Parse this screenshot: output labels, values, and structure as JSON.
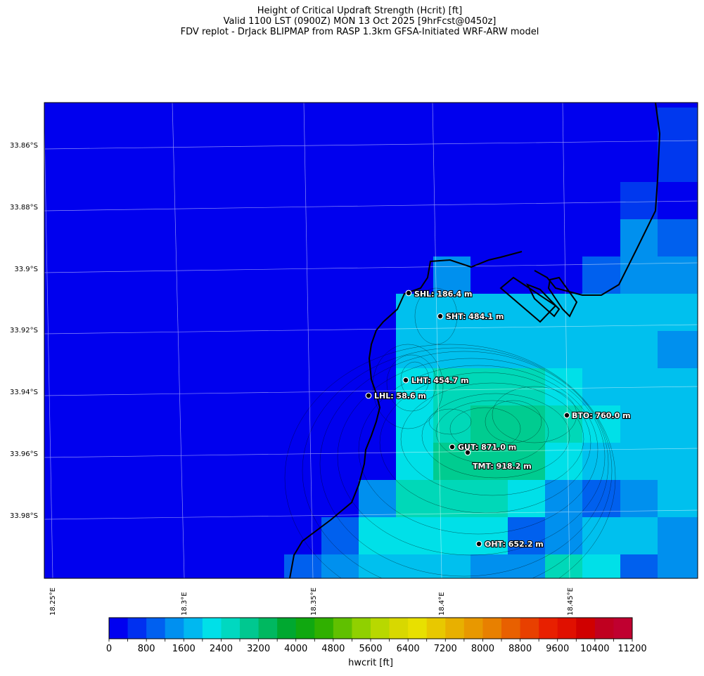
{
  "title": {
    "line1": "Height of Critical Updraft Strength (Hcrit) [ft]",
    "line2": "Valid 1100 LST (0900Z) MON 13 Oct 2025 [9hrFcst@0450z]",
    "line3": "FDV replot - DrJack BLIPMAP from RASP 1.3km GFSA-Initiated WRF-ARW model"
  },
  "lat_labels": [
    "33.86°S",
    "33.88°S",
    "33.9°S",
    "33.92°S",
    "33.94°S",
    "33.96°S",
    "33.98°S"
  ],
  "lon_labels": [
    "18.25°E",
    "18.3°E",
    "18.35°E",
    "18.4°E",
    "18.45°E"
  ],
  "sites": [
    {
      "code": "SHL",
      "label": "SHL: 186.4 m"
    },
    {
      "code": "SHT",
      "label": "SHT: 484.1 m"
    },
    {
      "code": "LHT",
      "label": "LHT: 454.7 m"
    },
    {
      "code": "LHL",
      "label": "LHL: 58.6 m"
    },
    {
      "code": "BTO",
      "label": "BTO: 760.0 m"
    },
    {
      "code": "GUT",
      "label": "GUT: 871.0 m"
    },
    {
      "code": "TMT",
      "label": "TMT: 918.2 m"
    },
    {
      "code": "OHT",
      "label": "OHT: 652.2 m"
    }
  ],
  "colorbar": {
    "title": "hwcrit [ft]",
    "tick_labels": [
      "0",
      "800",
      "1600",
      "2400",
      "3200",
      "4000",
      "4800",
      "5600",
      "6400",
      "7200",
      "8000",
      "8800",
      "9600",
      "10400",
      "11200"
    ],
    "colors": [
      "#0000f0",
      "#0030f0",
      "#0060f0",
      "#0090f0",
      "#00b8f0",
      "#00e0e8",
      "#00d8c0",
      "#00c890",
      "#00b860",
      "#00a830",
      "#10a810",
      "#30b000",
      "#60c000",
      "#90d000",
      "#b8d800",
      "#d8d800",
      "#e8e000",
      "#e8c800",
      "#e8b000",
      "#e89800",
      "#e88000",
      "#e86000",
      "#e84000",
      "#e82000",
      "#e01000",
      "#d00000",
      "#c00020",
      "#c00030"
    ]
  }
}
